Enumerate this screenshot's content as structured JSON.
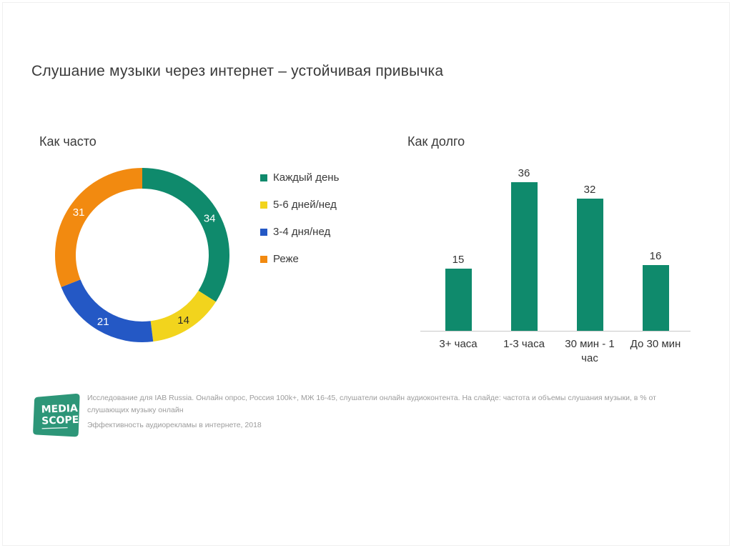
{
  "slide": {
    "title": "Слушание музыки через интернет – устойчивая привычка"
  },
  "chart_data": [
    {
      "type": "pie",
      "subtype": "donut",
      "title": "Как часто",
      "labels": [
        "Каждый день",
        "5-6 дней/нед",
        "3-4 дня/нед",
        "Реже"
      ],
      "values": [
        34,
        14,
        21,
        31
      ],
      "colors": [
        "#0f8a6c",
        "#f2d41d",
        "#2458c5",
        "#f28a10"
      ],
      "label_colors": [
        "#ffffff",
        "#2b2b2b",
        "#ffffff",
        "#ffffff"
      ],
      "start_angle_deg": 0,
      "direction": "clockwise",
      "legend_position": "right",
      "units": "% of online music listeners"
    },
    {
      "type": "bar",
      "title": "Как долго",
      "categories": [
        "3+ часа",
        "1-3 часа",
        "30 мин - 1 час",
        "До 30 мин"
      ],
      "values": [
        15,
        36,
        32,
        16
      ],
      "bar_color": "#0f8a6c",
      "xlabel": "",
      "ylabel": "",
      "ylim": [
        0,
        40
      ],
      "grid": false,
      "value_labels": true
    }
  ],
  "footer": {
    "logo": {
      "line1": "MEDIA",
      "line2": "SCOPE",
      "color": "#2d9678"
    },
    "note_line1": "Исследование для IAB Russia. Онлайн опрос, Россия 100k+, МЖ 16-45, слушатели онлайн аудиоконтента. На слайде: частота и объемы слушания музыки, в % от слушающих музыку онлайн",
    "note_line2": "Эффективность аудиорекламы в интернете, 2018"
  }
}
